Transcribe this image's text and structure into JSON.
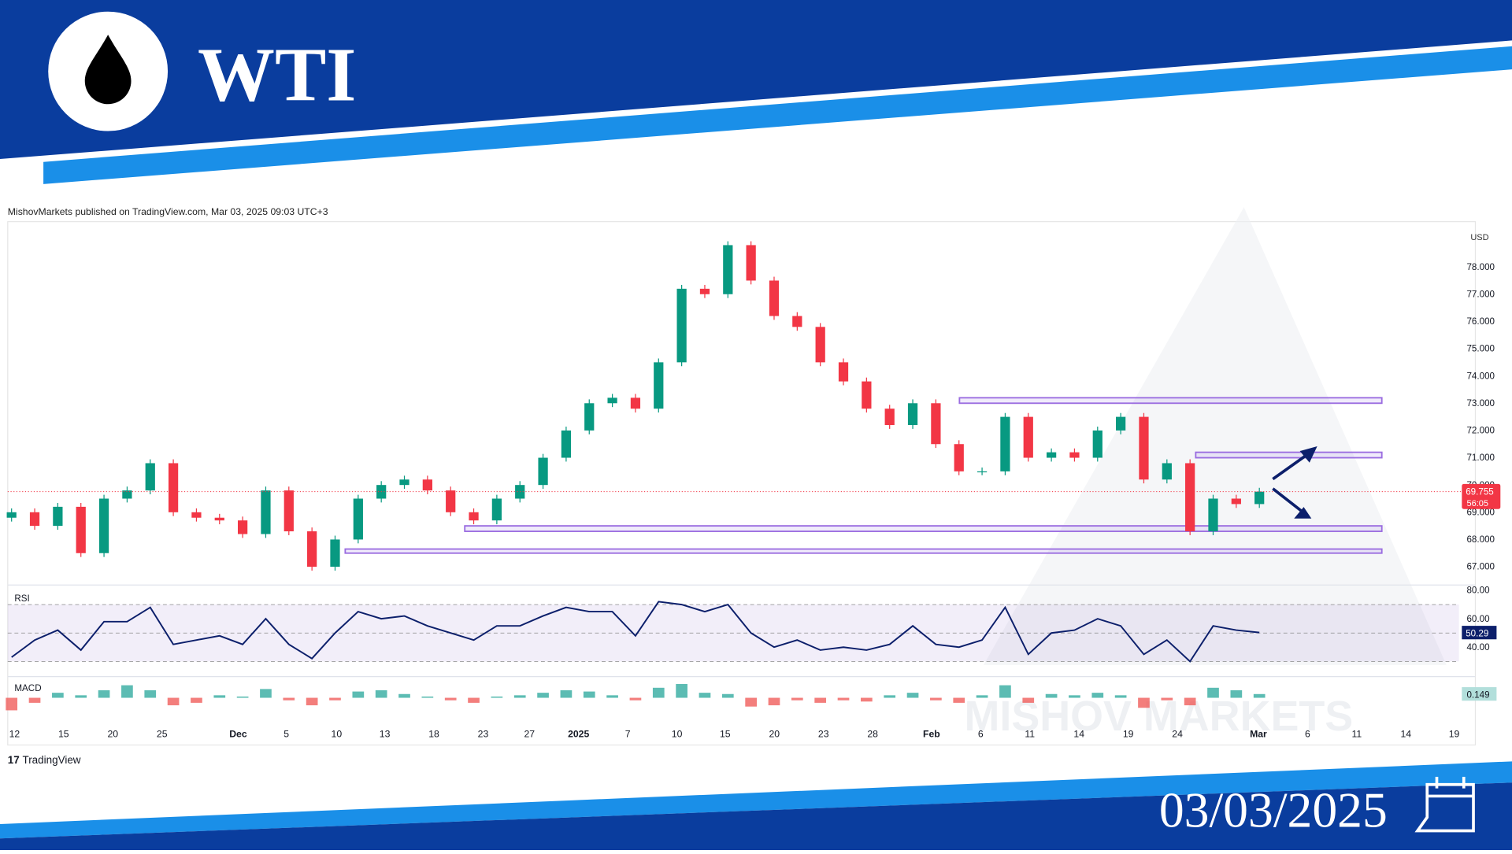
{
  "header": {
    "title": "WTI",
    "date": "03/03/2025"
  },
  "attribution": "MishovMarkets published on TradingView.com, Mar 03, 2025 09:03 UTC+3",
  "footer_logo": "TradingView",
  "watermark": "MISHOV MARKETS",
  "chart_data": [
    {
      "type": "candlestick",
      "currency": "USD",
      "up_color": "#089981",
      "down_color": "#f23645",
      "values": [
        69.0,
        68.5,
        69.2,
        67.5,
        69.5,
        69.8,
        70.8,
        69.0,
        68.8,
        68.7,
        68.2,
        69.8,
        68.3,
        67.0,
        68.0,
        69.5,
        70.0,
        70.2,
        69.8,
        69.0,
        68.7,
        69.5,
        70.0,
        71.0,
        72.0,
        73.0,
        73.2,
        72.8,
        74.5,
        77.2,
        77.0,
        78.8,
        77.5,
        76.2,
        75.8,
        74.5,
        73.8,
        72.8,
        72.2,
        73.0,
        71.5,
        70.5,
        70.5,
        72.5,
        71.0,
        71.2,
        71.0,
        72.0,
        72.5,
        70.2,
        70.8,
        68.3,
        69.5,
        69.3,
        69.755
      ],
      "ylim": [
        66.33,
        79.59
      ],
      "yticks": [
        {
          "value": 67,
          "label": "67.000"
        },
        {
          "value": 68,
          "label": "68.000"
        },
        {
          "value": 69,
          "label": "69.000"
        },
        {
          "value": 70,
          "label": "70.000"
        },
        {
          "value": 71,
          "label": "71.000"
        },
        {
          "value": 72,
          "label": "72.000"
        },
        {
          "value": 73,
          "label": "73.000"
        },
        {
          "value": 74,
          "label": "74.000"
        },
        {
          "value": 75,
          "label": "75.000"
        },
        {
          "value": 76,
          "label": "76.000"
        },
        {
          "value": 77,
          "label": "77.000"
        },
        {
          "value": 78,
          "label": "78.000"
        }
      ],
      "current_price": 69.755,
      "countdown": "56:05",
      "zones": [
        {
          "low": 73.0,
          "high": 73.2
        },
        {
          "low": 71.0,
          "high": 71.2
        },
        {
          "low": 68.3,
          "high": 68.5
        },
        {
          "low": 67.5,
          "high": 67.65
        }
      ],
      "x_labels": [
        "12",
        "15",
        "20",
        "25",
        "Dec",
        "5",
        "10",
        "13",
        "18",
        "23",
        "27",
        "2025",
        "7",
        "10",
        "15",
        "20",
        "23",
        "28",
        "Feb",
        "6",
        "11",
        "14",
        "19",
        "24",
        "Mar",
        "6",
        "11",
        "14",
        "19"
      ]
    },
    {
      "type": "line",
      "title": "RSI",
      "color": "#0c1f6b",
      "values": [
        33,
        45,
        52,
        38,
        58,
        58,
        68,
        42,
        45,
        48,
        42,
        60,
        42,
        32,
        50,
        65,
        60,
        62,
        55,
        50,
        45,
        55,
        55,
        62,
        68,
        65,
        65,
        48,
        72,
        70,
        65,
        70,
        50,
        40,
        45,
        38,
        40,
        38,
        42,
        55,
        42,
        40,
        45,
        68,
        35,
        50,
        52,
        60,
        55,
        35,
        45,
        30,
        55,
        52,
        50.29
      ],
      "ylim": [
        20.7,
        81.7
      ],
      "yticks": [
        {
          "value": 80,
          "label": "80.00"
        },
        {
          "value": 60,
          "label": "60.00"
        },
        {
          "value": 40,
          "label": "40.00"
        }
      ],
      "band": [
        30,
        70
      ],
      "midline": 50,
      "current_value": 50.29
    },
    {
      "type": "bar",
      "title": "MACD",
      "up_color": "#26a69a",
      "down_color": "#ef5350",
      "values": [
        -0.5,
        -0.2,
        0.2,
        0.1,
        0.3,
        0.5,
        0.3,
        -0.3,
        -0.2,
        0.1,
        0.05,
        0.35,
        -0.1,
        -0.3,
        -0.1,
        0.25,
        0.3,
        0.15,
        0.05,
        -0.1,
        -0.2,
        0.05,
        0.1,
        0.2,
        0.3,
        0.25,
        0.1,
        -0.1,
        0.4,
        0.55,
        0.2,
        0.15,
        -0.35,
        -0.3,
        -0.1,
        -0.2,
        -0.1,
        -0.15,
        0.1,
        0.2,
        -0.1,
        -0.2,
        0.1,
        0.5,
        -0.2,
        0.15,
        0.1,
        0.2,
        0.1,
        -0.4,
        -0.1,
        -0.3,
        0.4,
        0.3,
        0.149
      ],
      "ylim": [
        -1,
        1
      ],
      "current_value": 0.149
    }
  ]
}
